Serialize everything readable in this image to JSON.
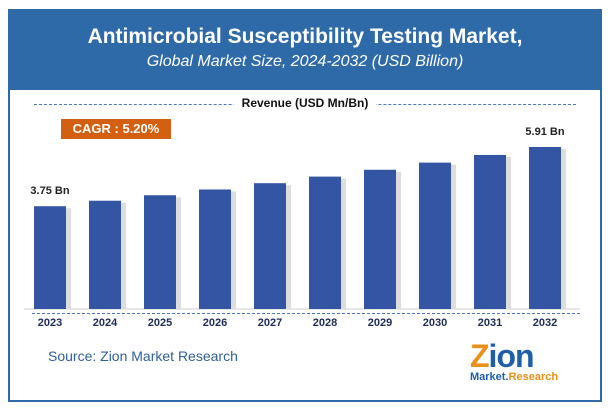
{
  "header": {
    "title": "Antimicrobial Susceptibility Testing Market,",
    "subtitle": "Global Market Size, 2024-2032 (USD Billion)"
  },
  "revenue_label": "Revenue (USD Mn/Bn)",
  "cagr": "CAGR : 5.20%",
  "source": "Source: Zion Market Research",
  "logo": {
    "text": "Zion",
    "sub1": "Market",
    "sub2": "Research"
  },
  "colors": {
    "bar": "#3454a4",
    "header": "#2e6aa8",
    "cagr": "#d35f10"
  },
  "chart_data": {
    "type": "bar",
    "categories": [
      "2023",
      "2024",
      "2025",
      "2026",
      "2027",
      "2028",
      "2029",
      "2030",
      "2031",
      "2032"
    ],
    "values": [
      3.75,
      3.95,
      4.15,
      4.36,
      4.59,
      4.83,
      5.08,
      5.34,
      5.62,
      5.91
    ],
    "data_labels": {
      "0": "3.75 Bn",
      "9": "5.91 Bn"
    },
    "title": "Antimicrobial Susceptibility Testing Market,",
    "ylabel": "Revenue (USD Mn/Bn)",
    "ylim": [
      0,
      5.91
    ],
    "grid": false
  }
}
